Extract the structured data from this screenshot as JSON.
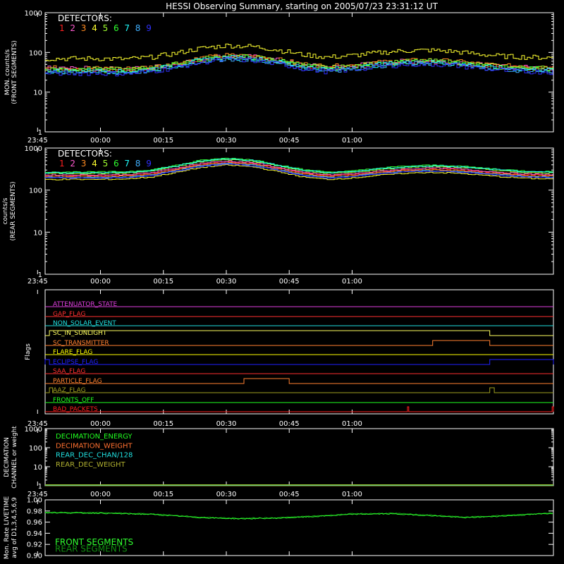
{
  "title": "HESSI Observing Summary, starting on 2005/07/23 23:31:12 UT",
  "time_ticks": [
    "23:45",
    "00:00",
    "00:15",
    "00:30",
    "00:45",
    "01:00"
  ],
  "detector_colors": [
    "#ff2020",
    "#ff5ad0",
    "#ff8a20",
    "#ffff30",
    "#a0ff30",
    "#30ff30",
    "#20ffff",
    "#40b0ff",
    "#3030ff"
  ],
  "chart_data": [
    {
      "type": "line",
      "id": "panel1",
      "ylabel": "MON. counts/s",
      "ylabel2": "(FRONT SEGMENTS)",
      "yscale": "log",
      "ylim": [
        1,
        1000
      ],
      "yticks": [
        "1",
        "10",
        "100",
        "1000"
      ],
      "legend_title": "DETECTORS:",
      "legend_labels": [
        "1",
        "2",
        "3",
        "4",
        "5",
        "6",
        "7",
        "8",
        "9"
      ],
      "x_hours": [
        -0.2,
        0,
        0.1,
        0.2,
        0.3,
        0.4,
        0.5,
        0.6,
        0.7,
        0.8,
        0.9,
        1.0,
        1.1,
        1.2,
        1.3,
        1.4,
        1.5,
        1.6,
        1.7,
        1.8
      ],
      "series": [
        {
          "name": "1",
          "values": [
            37,
            37,
            36,
            40,
            50,
            68,
            80,
            76,
            62,
            47,
            40,
            44,
            52,
            58,
            60,
            56,
            48,
            42,
            40,
            39
          ]
        },
        {
          "name": "2",
          "values": [
            40,
            39,
            38,
            42,
            52,
            70,
            82,
            78,
            64,
            49,
            42,
            46,
            54,
            60,
            62,
            58,
            50,
            44,
            42,
            41
          ]
        },
        {
          "name": "3",
          "values": [
            41,
            40,
            39,
            43,
            54,
            73,
            85,
            80,
            66,
            51,
            44,
            48,
            56,
            62,
            64,
            60,
            52,
            46,
            44,
            43
          ]
        },
        {
          "name": "4",
          "values": [
            70,
            70,
            68,
            76,
            96,
            128,
            150,
            142,
            116,
            88,
            76,
            84,
            98,
            110,
            114,
            106,
            90,
            80,
            76,
            74
          ]
        },
        {
          "name": "5",
          "values": [
            38,
            38,
            37,
            41,
            51,
            69,
            81,
            77,
            63,
            48,
            41,
            45,
            53,
            59,
            61,
            57,
            49,
            43,
            41,
            40
          ]
        },
        {
          "name": "6",
          "values": [
            36,
            36,
            35,
            39,
            49,
            66,
            78,
            74,
            60,
            46,
            39,
            43,
            51,
            57,
            59,
            55,
            47,
            41,
            39,
            38
          ]
        },
        {
          "name": "7",
          "values": [
            34,
            34,
            33,
            37,
            47,
            64,
            75,
            71,
            58,
            44,
            37,
            41,
            49,
            55,
            57,
            53,
            45,
            39,
            37,
            36
          ]
        },
        {
          "name": "8",
          "values": [
            32,
            32,
            31,
            35,
            44,
            60,
            70,
            66,
            54,
            41,
            35,
            39,
            46,
            52,
            54,
            50,
            43,
            37,
            35,
            34
          ]
        },
        {
          "name": "9",
          "values": [
            30,
            30,
            29,
            33,
            42,
            57,
            67,
            63,
            52,
            39,
            33,
            37,
            44,
            49,
            51,
            47,
            40,
            35,
            33,
            32
          ]
        }
      ]
    },
    {
      "type": "line",
      "id": "panel2",
      "ylabel": "counts/s",
      "ylabel2": "(REAR SEGMENTS)",
      "yscale": "log",
      "ylim": [
        1,
        1000
      ],
      "yticks": [
        "1",
        "10",
        "100",
        "1000"
      ],
      "legend_title": "DETECTORS:",
      "legend_labels": [
        "1",
        "2",
        "3",
        "4",
        "5",
        "6",
        "7",
        "8",
        "9"
      ],
      "x_hours": [
        -0.2,
        0,
        0.1,
        0.2,
        0.3,
        0.4,
        0.5,
        0.6,
        0.7,
        0.8,
        0.9,
        1.0,
        1.1,
        1.2,
        1.3,
        1.4,
        1.5,
        1.6,
        1.7,
        1.8
      ],
      "series": [
        {
          "name": "1",
          "values": [
            220,
            220,
            225,
            250,
            320,
            420,
            470,
            430,
            330,
            250,
            220,
            235,
            270,
            300,
            320,
            310,
            280,
            250,
            230,
            225
          ]
        },
        {
          "name": "2",
          "values": [
            230,
            230,
            235,
            260,
            335,
            440,
            490,
            450,
            345,
            260,
            230,
            245,
            280,
            315,
            335,
            325,
            290,
            260,
            240,
            235
          ]
        },
        {
          "name": "3",
          "values": [
            210,
            210,
            215,
            240,
            305,
            400,
            450,
            410,
            315,
            240,
            210,
            225,
            260,
            290,
            305,
            295,
            265,
            240,
            220,
            215
          ]
        },
        {
          "name": "4",
          "values": [
            180,
            180,
            185,
            205,
            265,
            350,
            395,
            360,
            275,
            205,
            180,
            195,
            225,
            250,
            265,
            255,
            230,
            205,
            190,
            185
          ]
        },
        {
          "name": "5",
          "values": [
            250,
            250,
            255,
            285,
            365,
            480,
            535,
            490,
            375,
            285,
            250,
            265,
            305,
            345,
            365,
            355,
            320,
            285,
            260,
            255
          ]
        },
        {
          "name": "6",
          "values": [
            270,
            270,
            275,
            305,
            390,
            515,
            575,
            525,
            400,
            305,
            270,
            285,
            330,
            370,
            390,
            380,
            340,
            305,
            280,
            275
          ]
        },
        {
          "name": "7",
          "values": [
            260,
            260,
            265,
            295,
            375,
            495,
            555,
            505,
            385,
            295,
            260,
            275,
            320,
            355,
            375,
            365,
            330,
            295,
            270,
            265
          ]
        },
        {
          "name": "8",
          "values": [
            200,
            200,
            205,
            230,
            290,
            385,
            430,
            395,
            300,
            230,
            200,
            215,
            250,
            275,
            290,
            280,
            255,
            230,
            210,
            205
          ]
        },
        {
          "name": "9",
          "values": [
            195,
            195,
            200,
            222,
            282,
            372,
            418,
            382,
            292,
            222,
            195,
            208,
            242,
            268,
            282,
            272,
            248,
            222,
            204,
            200
          ]
        }
      ]
    },
    {
      "type": "line",
      "id": "panel3",
      "ylabel": "Flags",
      "flags": [
        {
          "name": "ATTENUATOR_STATE",
          "color": "#e040e0",
          "segments": []
        },
        {
          "name": "GAP_FLAG",
          "color": "#ff3030",
          "segments": []
        },
        {
          "name": "NON_SOLAR_EVENT",
          "color": "#20e0e0",
          "segments": []
        },
        {
          "name": "SC_IN_SUNLIGHT",
          "color": "#ffff60",
          "segments": [
            [
              -0.203,
              1.547
            ]
          ]
        },
        {
          "name": "SC_TRANSMITTER",
          "color": "#ff8030",
          "segments": [
            [
              1.32,
              1.547
            ]
          ]
        },
        {
          "name": "FLARE_FLAG",
          "color": "#ffff00",
          "segments": []
        },
        {
          "name": "ECLIPSE_FLAG",
          "color": "#2020ff",
          "segments": [
            [
              -0.75,
              -0.203
            ],
            [
              1.547,
              1.8
            ]
          ]
        },
        {
          "name": "SAA_FLAG",
          "color": "#ff3030",
          "segments": []
        },
        {
          "name": "PARTICLE_FLAG",
          "color": "#ff8030",
          "segments": [
            [
              0.57,
              0.75
            ]
          ]
        },
        {
          "name": "AAZ_FLAG",
          "color": "#a0a020",
          "segments": [
            [
              -0.203,
              -0.19
            ],
            [
              1.547,
              1.565
            ]
          ]
        },
        {
          "name": "FRONTS_OFF",
          "color": "#20ff20",
          "segments": []
        },
        {
          "name": "BAD_PACKETS",
          "color": "#ff2020",
          "segments": [
            [
              1.22,
              1.225
            ],
            [
              1.795,
              1.8
            ]
          ]
        }
      ]
    },
    {
      "type": "line",
      "id": "panel4",
      "ylabel": "DECIMATION",
      "ylabel2": "CHANNEL or weight",
      "yscale": "log",
      "ylim": [
        1,
        1000
      ],
      "yticks": [
        "1",
        "10",
        "100",
        "1000"
      ],
      "series": [
        {
          "name": "DECIMATION_ENERGY",
          "color": "#20ff20",
          "values": [
            1,
            1
          ]
        },
        {
          "name": "DECIMATION_WEIGHT",
          "color": "#ff7030",
          "values": [
            1,
            1
          ]
        },
        {
          "name": "REAR_DEC_CHAN/128",
          "color": "#20e0e0",
          "values": [
            1,
            1
          ]
        },
        {
          "name": "REAR_DEC_WEIGHT",
          "color": "#b0b030",
          "values": [
            1,
            1
          ]
        }
      ]
    },
    {
      "type": "line",
      "id": "panel5",
      "ylabel": "Mon. Rate LIVETIME",
      "ylabel2": "avg of D1,3,4,5,6,9",
      "ylim": [
        0.9,
        1.0
      ],
      "yticks": [
        "0.90",
        "0.92",
        "0.94",
        "0.96",
        "0.98",
        "1.00"
      ],
      "x_hours": [
        -0.75,
        -0.5,
        -0.25,
        0,
        0.2,
        0.4,
        0.55,
        0.7,
        0.85,
        1.0,
        1.15,
        1.3,
        1.45,
        1.6,
        1.8
      ],
      "series": [
        {
          "name": "FRONT SEGMENTS",
          "color": "#30ff30",
          "values": [
            0.976,
            0.977,
            0.977,
            0.976,
            0.974,
            0.968,
            0.966,
            0.967,
            0.97,
            0.974,
            0.975,
            0.972,
            0.968,
            0.971,
            0.976
          ]
        },
        {
          "name": "REAR SEGMENTS",
          "color": "#109010",
          "values": [
            0.977,
            0.978,
            0.978,
            0.977,
            0.975,
            0.969,
            0.967,
            0.968,
            0.971,
            0.975,
            0.976,
            0.973,
            0.969,
            0.972,
            0.977
          ]
        }
      ]
    }
  ]
}
